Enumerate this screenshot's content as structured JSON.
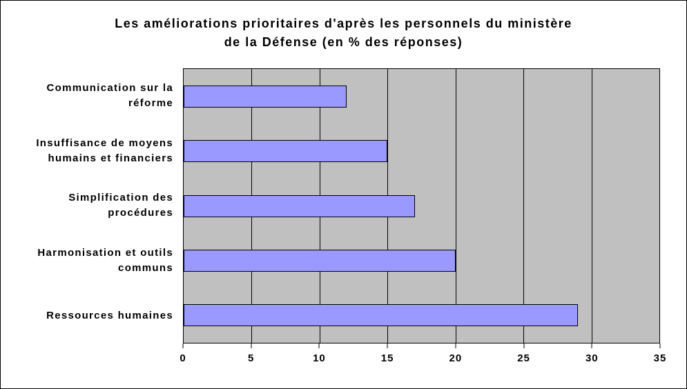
{
  "chart_data": {
    "type": "bar",
    "orientation": "horizontal",
    "title": "Les améliorations prioritaires d'après les personnels du ministère de la Défense (en % des réponses)",
    "title_lines": [
      "Les améliorations prioritaires d'après les personnels du ministère",
      "de la Défense (en % des réponses)"
    ],
    "categories": [
      "Communication sur la réforme",
      "Insuffisance de moyens humains et financiers",
      "Simplification des procédures",
      "Harmonisation et outils communs",
      "Ressources humaines"
    ],
    "category_label_lines": [
      [
        "Communication sur la",
        "réforme"
      ],
      [
        "Insuffisance de moyens",
        "humains et financiers"
      ],
      [
        "Simplification des",
        "procédures"
      ],
      [
        "Harmonisation et outils",
        "communs"
      ],
      [
        "Ressources humaines"
      ]
    ],
    "values": [
      12,
      15,
      17,
      20,
      29
    ],
    "xlabel": "",
    "ylabel": "",
    "xlim": [
      0,
      35
    ],
    "xticks": [
      0,
      5,
      10,
      15,
      20,
      25,
      30,
      35
    ],
    "grid": true,
    "legend": false,
    "colors": {
      "bar_fill": "#9999FF",
      "bar_border": "#000000",
      "plot_bg": "#C0C0C0",
      "gridline": "#000000",
      "background": "#FFFFFF",
      "frame_border": "#000000"
    }
  }
}
